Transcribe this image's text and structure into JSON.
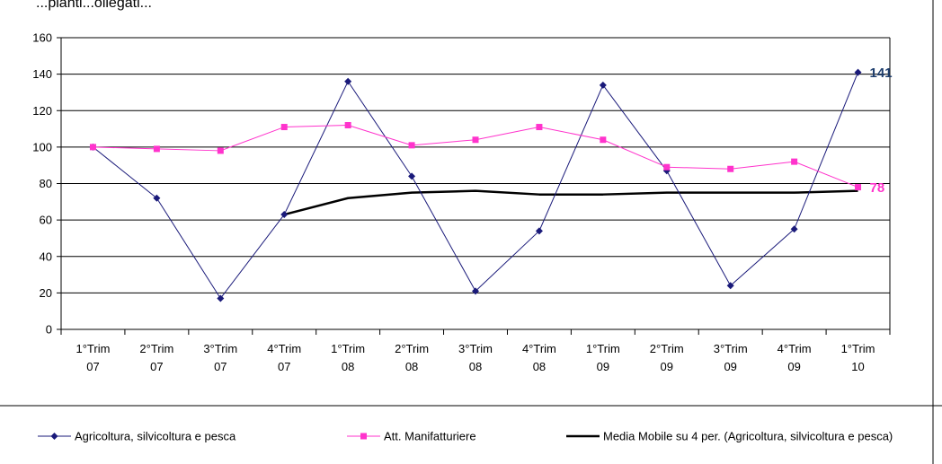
{
  "top_text": "...pianti...ollegati...",
  "chart_data": {
    "type": "line",
    "categories": [
      [
        "1°Trim",
        "07"
      ],
      [
        "2°Trim",
        "07"
      ],
      [
        "3°Trim",
        "07"
      ],
      [
        "4°Trim",
        "07"
      ],
      [
        "1°Trim",
        "08"
      ],
      [
        "2°Trim",
        "08"
      ],
      [
        "3°Trim",
        "08"
      ],
      [
        "4°Trim",
        "08"
      ],
      [
        "1°Trim",
        "09"
      ],
      [
        "2°Trim",
        "09"
      ],
      [
        "3°Trim",
        "09"
      ],
      [
        "4°Trim",
        "09"
      ],
      [
        "1°Trim",
        "10"
      ]
    ],
    "ylim": [
      0,
      160
    ],
    "yticks": [
      0,
      20,
      40,
      60,
      80,
      100,
      120,
      140,
      160
    ],
    "grid": true,
    "legend_position": "bottom",
    "series": [
      {
        "name": "Agricoltura, silvicoltura e pesca",
        "color": "#1a1a7a",
        "marker": "diamond",
        "values": [
          100,
          72,
          17,
          63,
          136,
          84,
          21,
          54,
          134,
          87,
          24,
          55,
          141
        ],
        "end_label": "141",
        "end_label_color": "#1f3f6e"
      },
      {
        "name": "Att. Manifatturiere",
        "color": "#ff33cc",
        "marker": "square",
        "values": [
          100,
          99,
          98,
          111,
          112,
          101,
          104,
          111,
          104,
          89,
          88,
          92,
          78
        ],
        "end_label": "78",
        "end_label_color": "#ff33cc"
      },
      {
        "name": "Media Mobile su 4 per. (Agricoltura, silvicoltura e pesca)",
        "color": "#000000",
        "marker": "none",
        "values": [
          null,
          null,
          null,
          63,
          72,
          75,
          76,
          74,
          74,
          75,
          75,
          75,
          76
        ]
      }
    ]
  }
}
